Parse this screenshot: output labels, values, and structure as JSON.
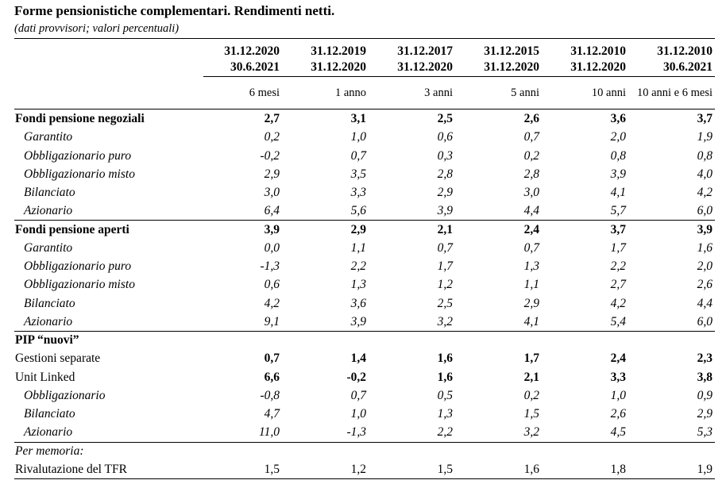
{
  "header": {
    "title": "Forme pensionistiche complementari. Rendimenti netti.",
    "subtitle": "(dati provvisori; valori percentuali)"
  },
  "table": {
    "columns": [
      {
        "from": "31.12.2020",
        "to": "30.6.2021",
        "period": "6 mesi"
      },
      {
        "from": "31.12.2019",
        "to": "31.12.2020",
        "period": "1 anno"
      },
      {
        "from": "31.12.2017",
        "to": "31.12.2020",
        "period": "3 anni"
      },
      {
        "from": "31.12.2015",
        "to": "31.12.2020",
        "period": "5 anni"
      },
      {
        "from": "31.12.2010",
        "to": "31.12.2020",
        "period": "10 anni"
      },
      {
        "from": "31.12.2010",
        "to": "30.6.2021",
        "period": "10 anni e 6 mesi"
      }
    ],
    "rows": [
      {
        "label": "Fondi pensione negoziali",
        "style": "group",
        "values": [
          "2,7",
          "3,1",
          "2,5",
          "2,6",
          "3,6",
          "3,7"
        ]
      },
      {
        "label": "Garantito",
        "style": "sub",
        "values": [
          "0,2",
          "1,0",
          "0,6",
          "0,7",
          "2,0",
          "1,9"
        ]
      },
      {
        "label": "Obbligazionario puro",
        "style": "sub",
        "values": [
          "-0,2",
          "0,7",
          "0,3",
          "0,2",
          "0,8",
          "0,8"
        ]
      },
      {
        "label": "Obbligazionario misto",
        "style": "sub",
        "values": [
          "2,9",
          "3,5",
          "2,8",
          "2,8",
          "3,9",
          "4,0"
        ]
      },
      {
        "label": "Bilanciato",
        "style": "sub",
        "values": [
          "3,0",
          "3,3",
          "2,9",
          "3,0",
          "4,1",
          "4,2"
        ]
      },
      {
        "label": "Azionario",
        "style": "sub",
        "values": [
          "6,4",
          "5,6",
          "3,9",
          "4,4",
          "5,7",
          "6,0"
        ]
      },
      {
        "label": "Fondi pensione aperti",
        "style": "group",
        "values": [
          "3,9",
          "2,9",
          "2,1",
          "2,4",
          "3,7",
          "3,9"
        ]
      },
      {
        "label": "Garantito",
        "style": "sub",
        "values": [
          "0,0",
          "1,1",
          "0,7",
          "0,7",
          "1,7",
          "1,6"
        ]
      },
      {
        "label": "Obbligazionario puro",
        "style": "sub",
        "values": [
          "-1,3",
          "2,2",
          "1,7",
          "1,3",
          "2,2",
          "2,0"
        ]
      },
      {
        "label": "Obbligazionario misto",
        "style": "sub",
        "values": [
          "0,6",
          "1,3",
          "1,2",
          "1,1",
          "2,7",
          "2,6"
        ]
      },
      {
        "label": "Bilanciato",
        "style": "sub",
        "values": [
          "4,2",
          "3,6",
          "2,5",
          "2,9",
          "4,2",
          "4,4"
        ]
      },
      {
        "label": "Azionario",
        "style": "sub",
        "values": [
          "9,1",
          "3,9",
          "3,2",
          "4,1",
          "5,4",
          "6,0"
        ]
      },
      {
        "label": "PIP “nuovi”",
        "style": "group",
        "values": []
      },
      {
        "label": "Gestioni separate",
        "style": "plain-bold",
        "values": [
          "0,7",
          "1,4",
          "1,6",
          "1,7",
          "2,4",
          "2,3"
        ]
      },
      {
        "label": "Unit Linked",
        "style": "plain-bold",
        "values": [
          "6,6",
          "-0,2",
          "1,6",
          "2,1",
          "3,3",
          "3,8"
        ]
      },
      {
        "label": "Obbligazionario",
        "style": "sub",
        "values": [
          "-0,8",
          "0,7",
          "0,5",
          "0,2",
          "1,0",
          "0,9"
        ]
      },
      {
        "label": "Bilanciato",
        "style": "sub",
        "values": [
          "4,7",
          "1,0",
          "1,3",
          "1,5",
          "2,6",
          "2,9"
        ]
      },
      {
        "label": "Azionario",
        "style": "sub",
        "values": [
          "11,0",
          "-1,3",
          "2,2",
          "3,2",
          "4,5",
          "5,3"
        ]
      },
      {
        "label": "Per memoria:",
        "style": "note",
        "values": []
      },
      {
        "label": "Rivalutazione del TFR",
        "style": "plain",
        "values": [
          "1,5",
          "1,2",
          "1,5",
          "1,6",
          "1,8",
          "1,9"
        ]
      }
    ]
  }
}
